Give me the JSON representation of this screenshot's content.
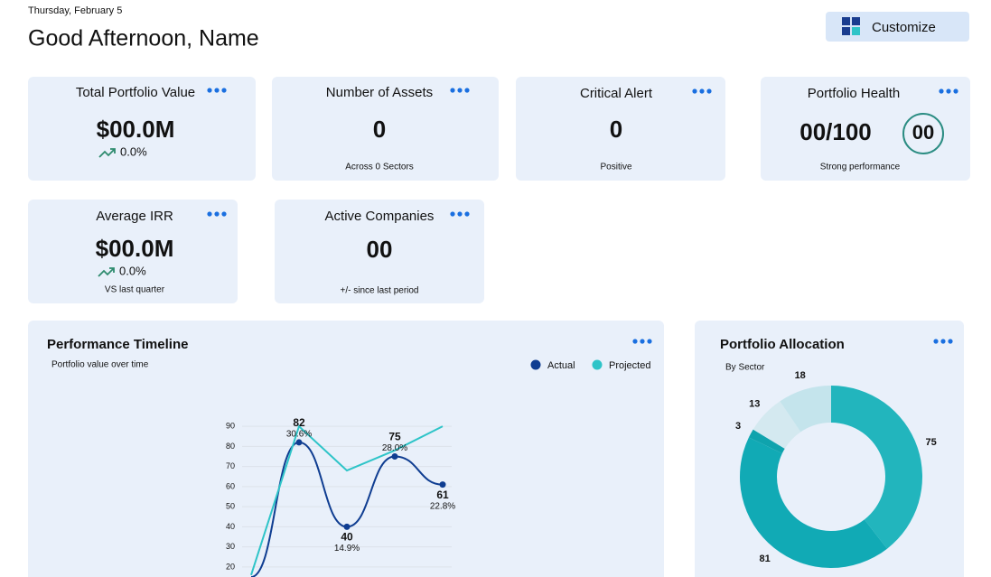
{
  "header": {
    "date": "Thursday, February 5",
    "greeting": "Good Afternoon, Name",
    "button": "Customize"
  },
  "cards": [
    {
      "title": "Total Portfolio Value",
      "value": "$00.0M",
      "change": "0.0%"
    },
    {
      "title": "Number of Assets",
      "value": "0",
      "note": "Across 0 Sectors"
    },
    {
      "title": "Critical Alert",
      "value": "0",
      "note": "Positive"
    },
    {
      "title": "Portfolio Health",
      "value": "00/100",
      "badge": "00",
      "note": "Strong performance"
    },
    {
      "title": "Average IRR",
      "value": "$00.0M",
      "change": "0.0%",
      "note": "VS last quarter"
    },
    {
      "title": "Active Companies",
      "value": "00",
      "note": "+/- since last period"
    }
  ],
  "chart_data": [
    {
      "type": "line",
      "title": "Performance Timeline",
      "subtitle": "Portfolio value over time",
      "categories": [
        null,
        null,
        null,
        null,
        null
      ],
      "series": [
        {
          "name": "Actual",
          "color": "#0f3d91",
          "smooth": true,
          "markers": true,
          "values": [
            15,
            82,
            40,
            75,
            61
          ],
          "annotations": [
            null,
            "30.6%",
            "14.9%",
            "28.0%",
            "22.8%"
          ]
        },
        {
          "name": "Projected",
          "color": "#2ec4c8",
          "smooth": false,
          "markers": false,
          "values": [
            16,
            90,
            68,
            78,
            90
          ]
        }
      ],
      "ylim": [
        15,
        95
      ],
      "yticks": [
        20,
        30,
        40,
        50,
        60,
        70,
        80,
        90
      ],
      "grid": true,
      "legend": "top-right"
    },
    {
      "type": "pie",
      "title": "Portfolio Allocation",
      "subtitle": "By Sector",
      "donut": true,
      "values": [
        75,
        81,
        3,
        13,
        18
      ],
      "colors": [
        "#22b5bd",
        "#11aab5",
        "#0fa3ad",
        "#d4e9f0",
        "#c4e4ec"
      ]
    }
  ]
}
